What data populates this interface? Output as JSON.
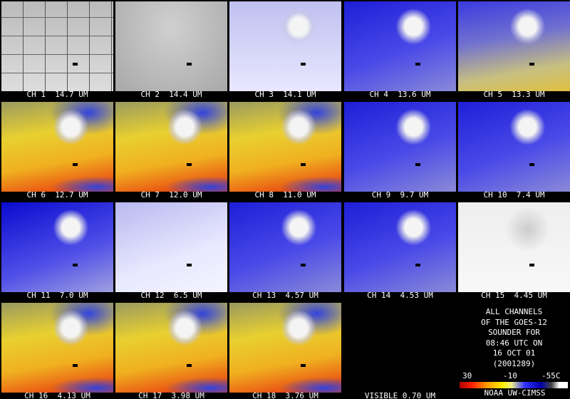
{
  "panels": [
    {
      "label": "CH 1  14.7 UM"
    },
    {
      "label": "CH 2  14.4 UM"
    },
    {
      "label": "CH 3  14.1 UM"
    },
    {
      "label": "CH 4  13.6 UM"
    },
    {
      "label": "CH 5  13.3 UM"
    },
    {
      "label": "CH 6  12.7 UM"
    },
    {
      "label": "CH 7  12.0 UM"
    },
    {
      "label": "CH 8  11.0 UM"
    },
    {
      "label": "CH 9  9.7 UM"
    },
    {
      "label": "CH 10  7.4 UM"
    },
    {
      "label": "CH 11  7.0 UM"
    },
    {
      "label": "CH 12  6.5 UM"
    },
    {
      "label": "CH 13  4.57 UM"
    },
    {
      "label": "CH 14  4.53 UM"
    },
    {
      "label": "CH 15  4.45 UM"
    },
    {
      "label": "CH 16  4.13 UM"
    },
    {
      "label": "CH 17  3.98 UM"
    },
    {
      "label": "CH 18  3.76 UM"
    },
    {
      "label": "VISIBLE 0.70 UM"
    }
  ],
  "info": {
    "lines": [
      "ALL CHANNELS",
      "OF THE GOES-12",
      "SOUNDER FOR",
      "08:46 UTC ON",
      "16 OCT 01",
      "(2001289)"
    ]
  },
  "color_bar": {
    "labels": [
      "30",
      "-10",
      "-55C"
    ]
  },
  "credit": "NOAA UW-CIMSS"
}
